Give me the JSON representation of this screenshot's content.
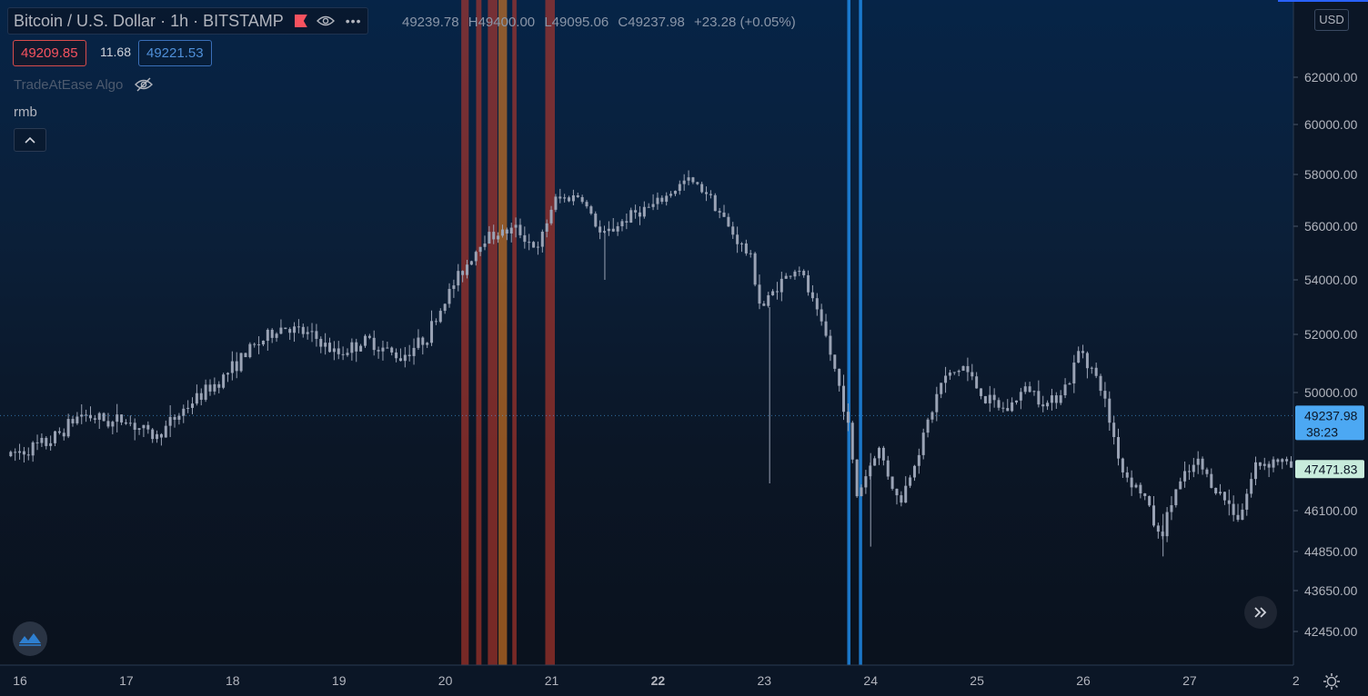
{
  "header": {
    "symbol": "Bitcoin / U.S. Dollar",
    "interval": "1h",
    "exchange": "BITSTAMP",
    "more_label": "•••",
    "ohlc": {
      "open": "49239.78",
      "high": "H49400.00",
      "low": "L49095.06",
      "close": "C49237.98",
      "change": "+23.28 (+0.05%)"
    },
    "bid": "49209.85",
    "spread": "11.68",
    "ask": "49221.53"
  },
  "indicator": {
    "name": "TradeAtEase Algo"
  },
  "pane_label": "rmb",
  "currency_label": "USD",
  "colors": {
    "candle": "#9aa3b5",
    "accent_blue": "#2962ff",
    "sell_signal": "#c0392b",
    "buy_signal": "#1e88e5",
    "last_price_bg": "#4ca8f3",
    "secondary_label_bg": "#c8ecdc"
  },
  "chart_data": {
    "type": "candlestick",
    "x_tick_labels": [
      "16",
      "17",
      "18",
      "19",
      "20",
      "21",
      "22",
      "23",
      "24",
      "25",
      "26",
      "27",
      "2"
    ],
    "y_tick_labels": [
      "62000.00",
      "60000.00",
      "58000.00",
      "56000.00",
      "54000.00",
      "52000.00",
      "50000.00",
      "47471.83",
      "46100.00",
      "44850.00",
      "43650.00",
      "42450.00"
    ],
    "y_range": [
      41800,
      64500
    ],
    "last_price": {
      "value": 49237.98,
      "label": "49237.98",
      "countdown": "38:23"
    },
    "secondary_price": {
      "value": 47471.83,
      "label": "47471.83"
    },
    "path": [
      [
        15.9,
        47900
      ],
      [
        16.3,
        48350
      ],
      [
        16.6,
        49300
      ],
      [
        16.9,
        49000
      ],
      [
        17.0,
        49150
      ],
      [
        17.3,
        48500
      ],
      [
        17.6,
        49550
      ],
      [
        17.9,
        50400
      ],
      [
        18.2,
        51500
      ],
      [
        18.5,
        52300
      ],
      [
        18.8,
        51900
      ],
      [
        19.0,
        51300
      ],
      [
        19.3,
        51800
      ],
      [
        19.6,
        51200
      ],
      [
        19.85,
        51900
      ],
      [
        20.1,
        53800
      ],
      [
        20.4,
        55600
      ],
      [
        20.7,
        55900
      ],
      [
        20.9,
        55100
      ],
      [
        21.05,
        57000
      ],
      [
        21.3,
        57200
      ],
      [
        21.5,
        55600
      ],
      [
        21.8,
        56500
      ],
      [
        22.0,
        56800
      ],
      [
        22.3,
        57800
      ],
      [
        22.5,
        57300
      ],
      [
        22.7,
        55900
      ],
      [
        22.9,
        54800
      ],
      [
        23.0,
        52900
      ],
      [
        23.15,
        53800
      ],
      [
        23.35,
        54500
      ],
      [
        23.6,
        52000
      ],
      [
        23.8,
        49300
      ],
      [
        23.9,
        46600
      ],
      [
        24.1,
        48200
      ],
      [
        24.3,
        46300
      ],
      [
        24.5,
        48300
      ],
      [
        24.7,
        50400
      ],
      [
        24.9,
        50900
      ],
      [
        25.1,
        49800
      ],
      [
        25.3,
        49400
      ],
      [
        25.5,
        50200
      ],
      [
        25.7,
        49600
      ],
      [
        25.9,
        50400
      ],
      [
        26.0,
        51600
      ],
      [
        26.2,
        50100
      ],
      [
        26.4,
        47400
      ],
      [
        26.6,
        46600
      ],
      [
        26.75,
        45200
      ],
      [
        26.9,
        46800
      ],
      [
        27.1,
        47700
      ],
      [
        27.3,
        46700
      ],
      [
        27.5,
        45900
      ],
      [
        27.65,
        47600
      ],
      [
        27.85,
        47800
      ],
      [
        28.0,
        47500
      ]
    ],
    "signal_bands": [
      {
        "type": "sell",
        "x": [
          20.15,
          20.22
        ]
      },
      {
        "type": "sell",
        "x": [
          20.29,
          20.34
        ]
      },
      {
        "type": "sell",
        "x": [
          20.4,
          20.49
        ]
      },
      {
        "type": "warning",
        "x": [
          20.5,
          20.58
        ]
      },
      {
        "type": "sell",
        "x": [
          20.63,
          20.67
        ]
      },
      {
        "type": "sell",
        "x": [
          20.94,
          21.03
        ]
      },
      {
        "type": "buy",
        "x": [
          23.78,
          23.81
        ]
      },
      {
        "type": "buy",
        "x": [
          23.89,
          23.92
        ]
      }
    ]
  }
}
